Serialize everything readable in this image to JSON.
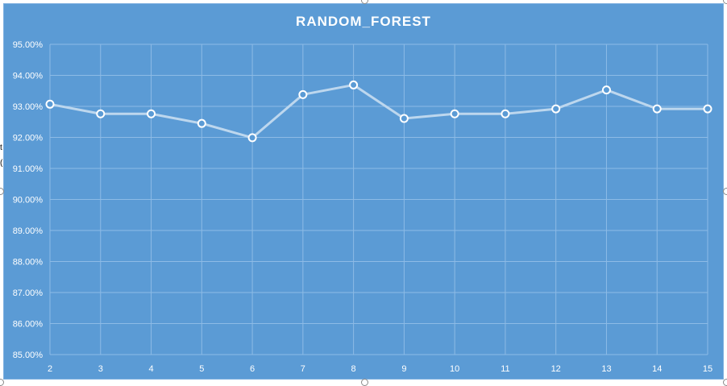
{
  "chart_data": {
    "type": "line",
    "title": "RANDOM_FOREST",
    "xlabel": "",
    "ylabel": "",
    "x": [
      2,
      3,
      4,
      5,
      6,
      7,
      8,
      9,
      10,
      11,
      12,
      13,
      14,
      15
    ],
    "series": [
      {
        "values": [
          93.07,
          92.76,
          92.76,
          92.45,
          91.99,
          93.38,
          93.69,
          92.61,
          92.76,
          92.76,
          92.92,
          93.53,
          92.92,
          92.92
        ]
      }
    ],
    "ylim": [
      85,
      95
    ],
    "y_ticks": [
      "85.00%",
      "86.00%",
      "87.00%",
      "88.00%",
      "89.00%",
      "90.00%",
      "91.00%",
      "92.00%",
      "93.00%",
      "94.00%",
      "95.00%"
    ],
    "x_ticks": [
      "2",
      "3",
      "4",
      "5",
      "6",
      "7",
      "8",
      "9",
      "10",
      "11",
      "12",
      "13",
      "14",
      "15"
    ],
    "grid": true,
    "legend": "none",
    "colors": {
      "background": "#5b9bd5",
      "line": "#bdd7ee",
      "marker_fill": "#5b9bd5",
      "marker_stroke": "#ffffff",
      "grid": "#8dbbe6",
      "text": "#ffffff"
    }
  },
  "edge_text": [
    "t",
    "("
  ]
}
